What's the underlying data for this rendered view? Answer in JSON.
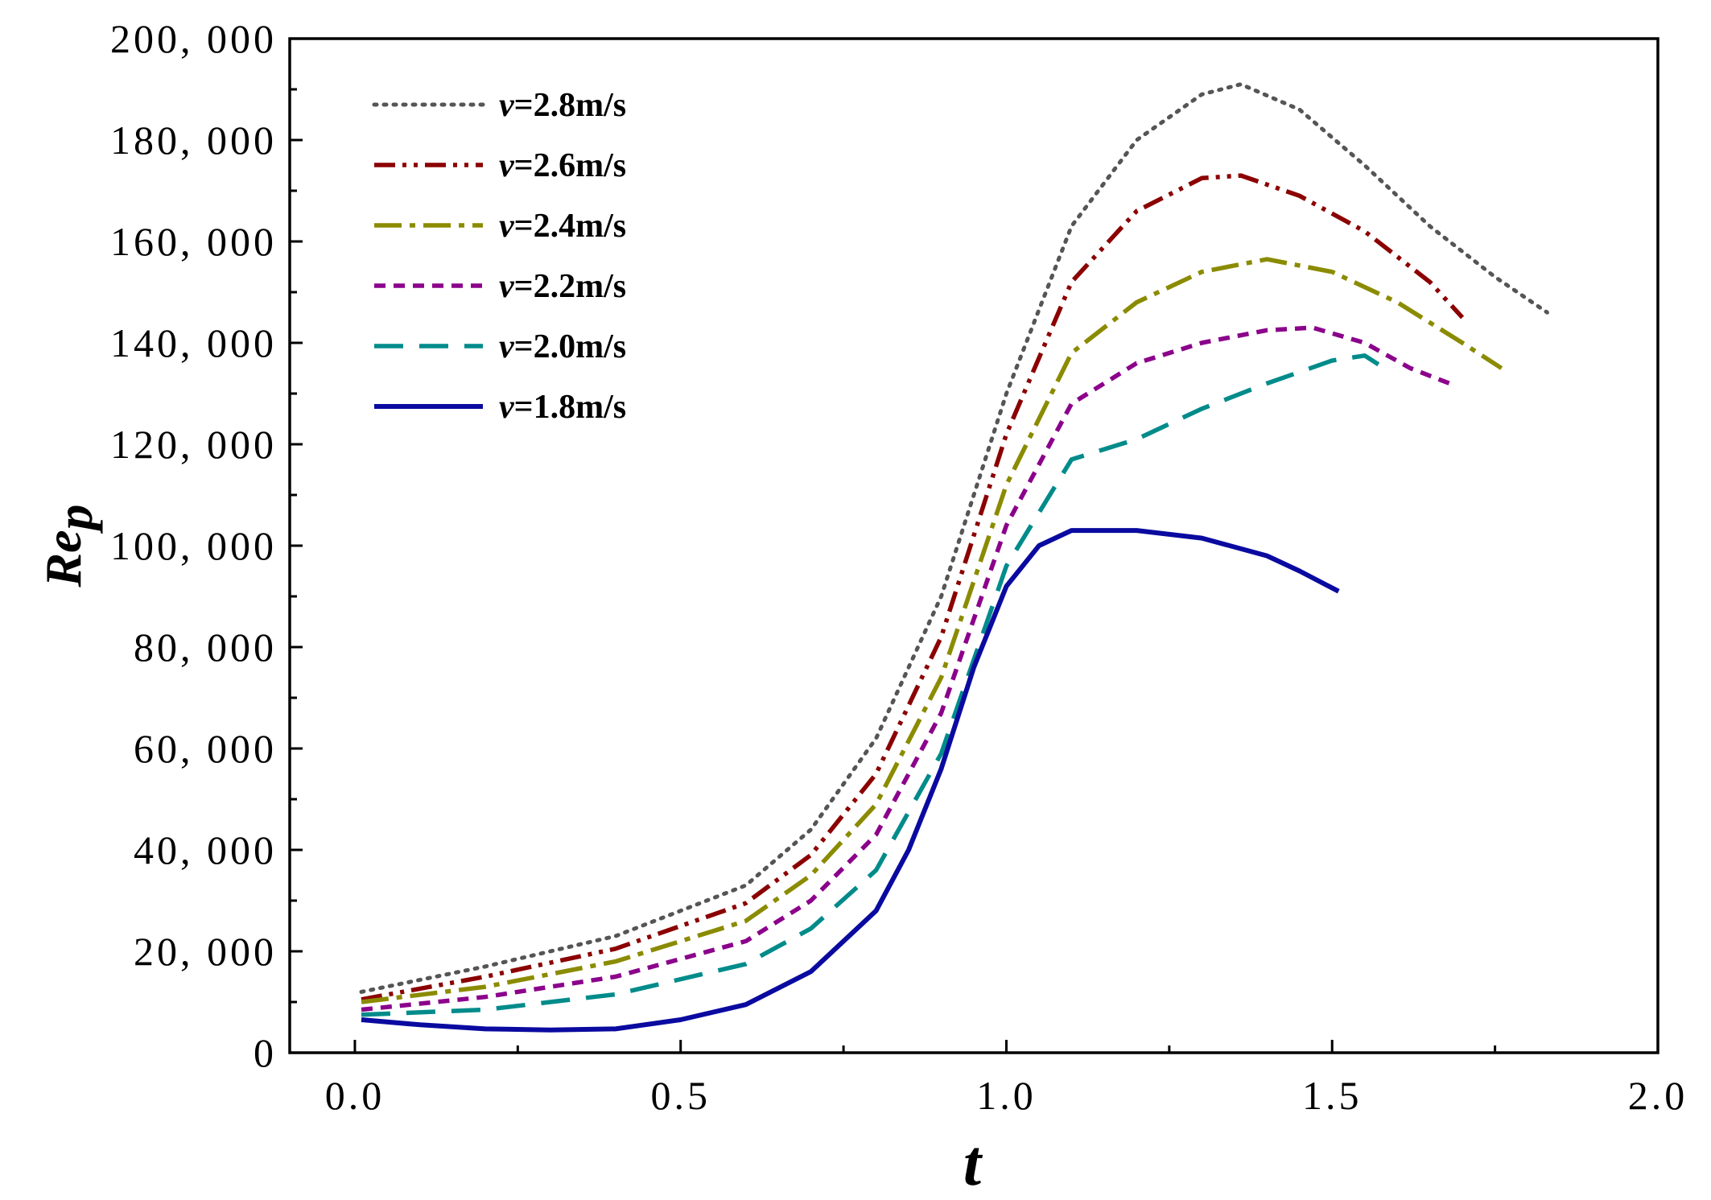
{
  "chart_data": {
    "type": "line",
    "title": "",
    "xlabel": "t",
    "ylabel_main": "Re",
    "ylabel_sub": "p",
    "xlim": [
      -0.1,
      2.0
    ],
    "ylim": [
      0,
      200000
    ],
    "xticks": [
      0.0,
      0.5,
      1.0,
      1.5,
      2.0
    ],
    "xtick_labels": [
      "0.0",
      "0.5",
      "1.0",
      "1.5",
      "2.0"
    ],
    "yticks": [
      0,
      20000,
      40000,
      60000,
      80000,
      100000,
      120000,
      140000,
      160000,
      180000,
      200000
    ],
    "ytick_labels": [
      "0",
      "20, 000",
      "40, 000",
      "60, 000",
      "80, 000",
      "100, 000",
      "120, 000",
      "140, 000",
      "160, 000",
      "180, 000",
      "200, 000"
    ],
    "grid": false,
    "legend_position": "top-left",
    "series": [
      {
        "name": "v=2.8m/s",
        "color": "#555555",
        "dash": "dotted",
        "x": [
          0.01,
          0.2,
          0.4,
          0.6,
          0.7,
          0.8,
          0.9,
          1.0,
          1.1,
          1.2,
          1.3,
          1.36,
          1.45,
          1.55,
          1.65,
          1.75,
          1.83
        ],
        "y": [
          12000,
          17000,
          23000,
          33000,
          44000,
          62000,
          90000,
          130000,
          163000,
          180000,
          189000,
          191000,
          186000,
          175000,
          163000,
          153000,
          146000
        ]
      },
      {
        "name": "v=2.6m/s",
        "color": "#8b0000",
        "dash": "dashdotdot",
        "x": [
          0.01,
          0.2,
          0.4,
          0.6,
          0.7,
          0.8,
          0.9,
          1.0,
          1.1,
          1.2,
          1.3,
          1.36,
          1.45,
          1.55,
          1.65,
          1.7
        ],
        "y": [
          10500,
          15000,
          20500,
          29500,
          39000,
          55000,
          82000,
          122000,
          152000,
          166000,
          172500,
          173000,
          169000,
          162000,
          152000,
          145000
        ]
      },
      {
        "name": "v=2.4m/s",
        "color": "#8b8b00",
        "dash": "dashdot",
        "x": [
          0.01,
          0.2,
          0.4,
          0.6,
          0.7,
          0.8,
          0.9,
          1.0,
          1.1,
          1.2,
          1.3,
          1.4,
          1.5,
          1.6,
          1.7,
          1.76
        ],
        "y": [
          10000,
          13000,
          18000,
          26000,
          35000,
          49000,
          74000,
          112000,
          138000,
          148000,
          154000,
          156500,
          154000,
          148000,
          140000,
          135000
        ]
      },
      {
        "name": "v=2.2m/s",
        "color": "#8b008b",
        "dash": "shortdash",
        "x": [
          0.01,
          0.2,
          0.4,
          0.6,
          0.7,
          0.8,
          0.9,
          1.0,
          1.1,
          1.2,
          1.3,
          1.4,
          1.47,
          1.55,
          1.62,
          1.68
        ],
        "y": [
          8500,
          11000,
          15000,
          22000,
          30000,
          43000,
          67000,
          104000,
          128000,
          136000,
          140000,
          142500,
          143000,
          140000,
          135000,
          132000
        ]
      },
      {
        "name": "v=2.0m/s",
        "color": "#008b8b",
        "dash": "longdash",
        "x": [
          0.01,
          0.2,
          0.4,
          0.6,
          0.7,
          0.8,
          0.9,
          1.0,
          1.1,
          1.2,
          1.3,
          1.4,
          1.5,
          1.55,
          1.58
        ],
        "y": [
          7500,
          8500,
          11500,
          17500,
          24500,
          36000,
          59000,
          96000,
          117000,
          121000,
          127000,
          132000,
          136500,
          137500,
          135000
        ]
      },
      {
        "name": "v=1.8m/s",
        "color": "#0a0aa0",
        "dash": "solid",
        "x": [
          0.01,
          0.1,
          0.2,
          0.3,
          0.4,
          0.5,
          0.6,
          0.7,
          0.8,
          0.85,
          0.9,
          0.95,
          1.0,
          1.05,
          1.1,
          1.2,
          1.3,
          1.4,
          1.45,
          1.51
        ],
        "y": [
          6500,
          5500,
          4700,
          4500,
          4700,
          6500,
          9500,
          16000,
          28000,
          40000,
          56000,
          76000,
          92000,
          100000,
          103000,
          103000,
          101500,
          98000,
          95000,
          91000
        ]
      }
    ]
  }
}
